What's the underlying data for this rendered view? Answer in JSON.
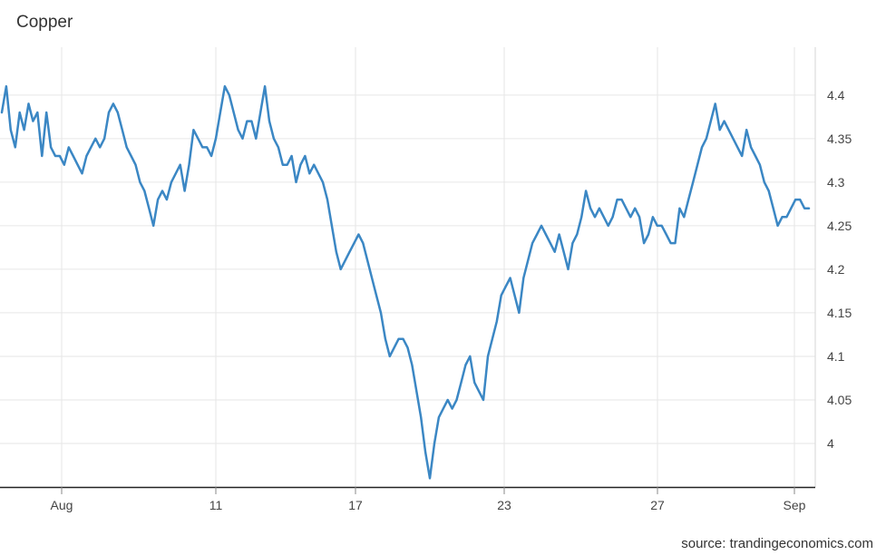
{
  "chart_data": {
    "type": "line",
    "title": "Copper",
    "source": "source: trandingeconomics.com",
    "x_tick_labels": [
      "Aug",
      "11",
      "17",
      "23",
      "27",
      "Sep"
    ],
    "y_ticks": [
      4,
      4.05,
      4.1,
      4.15,
      4.2,
      4.25,
      4.3,
      4.35,
      4.4
    ],
    "y_tick_labels": [
      "4",
      "4.05",
      "4.1",
      "4.15",
      "4.2",
      "4.25",
      "4.3",
      "4.35",
      "4.4"
    ],
    "ylim": [
      3.95,
      4.455
    ],
    "grid": true,
    "colors": {
      "line": "#3b87c4",
      "grid": "#e6e6e6",
      "axis": "#222222"
    },
    "series": [
      {
        "values": [
          4.38,
          4.41,
          4.36,
          4.34,
          4.38,
          4.36,
          4.39,
          4.37,
          4.38,
          4.33,
          4.38,
          4.34,
          4.33,
          4.33,
          4.32,
          4.34,
          4.33,
          4.32,
          4.31,
          4.33,
          4.34,
          4.35,
          4.34,
          4.35,
          4.38,
          4.39,
          4.38,
          4.36,
          4.34,
          4.33,
          4.32,
          4.3,
          4.29,
          4.27,
          4.25,
          4.28,
          4.29,
          4.28,
          4.3,
          4.31,
          4.32,
          4.29,
          4.32,
          4.36,
          4.35,
          4.34,
          4.34,
          4.33,
          4.35,
          4.38,
          4.41,
          4.4,
          4.38,
          4.36,
          4.35,
          4.37,
          4.37,
          4.35,
          4.38,
          4.41,
          4.37,
          4.35,
          4.34,
          4.32,
          4.32,
          4.33,
          4.3,
          4.32,
          4.33,
          4.31,
          4.32,
          4.31,
          4.3,
          4.28,
          4.25,
          4.22,
          4.2,
          4.21,
          4.22,
          4.23,
          4.24,
          4.23,
          4.21,
          4.19,
          4.17,
          4.15,
          4.12,
          4.1,
          4.11,
          4.12,
          4.12,
          4.11,
          4.09,
          4.06,
          4.03,
          3.99,
          3.96,
          4.0,
          4.03,
          4.04,
          4.05,
          4.04,
          4.05,
          4.07,
          4.09,
          4.1,
          4.07,
          4.06,
          4.05,
          4.1,
          4.12,
          4.14,
          4.17,
          4.18,
          4.19,
          4.17,
          4.15,
          4.19,
          4.21,
          4.23,
          4.24,
          4.25,
          4.24,
          4.23,
          4.22,
          4.24,
          4.22,
          4.2,
          4.23,
          4.24,
          4.26,
          4.29,
          4.27,
          4.26,
          4.27,
          4.26,
          4.25,
          4.26,
          4.28,
          4.28,
          4.27,
          4.26,
          4.27,
          4.26,
          4.23,
          4.24,
          4.26,
          4.25,
          4.25,
          4.24,
          4.23,
          4.23,
          4.27,
          4.26,
          4.28,
          4.3,
          4.32,
          4.34,
          4.35,
          4.37,
          4.39,
          4.36,
          4.37,
          4.36,
          4.35,
          4.34,
          4.33,
          4.36,
          4.34,
          4.33,
          4.32,
          4.3,
          4.29,
          4.27,
          4.25,
          4.26,
          4.26,
          4.27,
          4.28,
          4.28,
          4.27,
          4.27
        ]
      }
    ]
  }
}
